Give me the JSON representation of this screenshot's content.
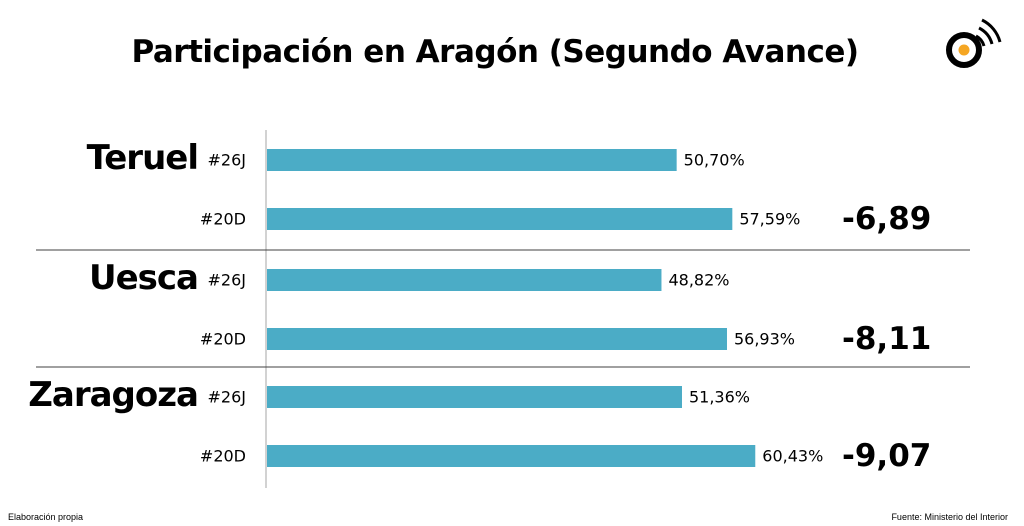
{
  "title": "Participación en Aragón (Segundo Avance)",
  "footer": {
    "left": "Elaboración propia",
    "right": "Fuente: Ministerio del Interior"
  },
  "colors": {
    "bar": "#4BACC6",
    "logo_ring": "#000000",
    "logo_dot": "#F5A623"
  },
  "logo_icon": "broadcast-circle-icon",
  "chart_data": {
    "type": "bar",
    "orientation": "horizontal",
    "xlim": [
      0,
      100
    ],
    "grid": false,
    "groups": [
      {
        "name": "Teruel",
        "bars": [
          {
            "label": "#26J",
            "value": 50.7,
            "value_label": "50,70%"
          },
          {
            "label": "#20D",
            "value": 57.59,
            "value_label": "57,59%"
          }
        ],
        "difference": "-6,89"
      },
      {
        "name": "Uesca",
        "bars": [
          {
            "label": "#26J",
            "value": 48.82,
            "value_label": "48,82%"
          },
          {
            "label": "#20D",
            "value": 56.93,
            "value_label": "56,93%"
          }
        ],
        "difference": "-8,11"
      },
      {
        "name": "Zaragoza",
        "bars": [
          {
            "label": "#26J",
            "value": 51.36,
            "value_label": "51,36%"
          },
          {
            "label": "#20D",
            "value": 60.43,
            "value_label": "60,43%"
          }
        ],
        "difference": "-9,07"
      }
    ]
  }
}
